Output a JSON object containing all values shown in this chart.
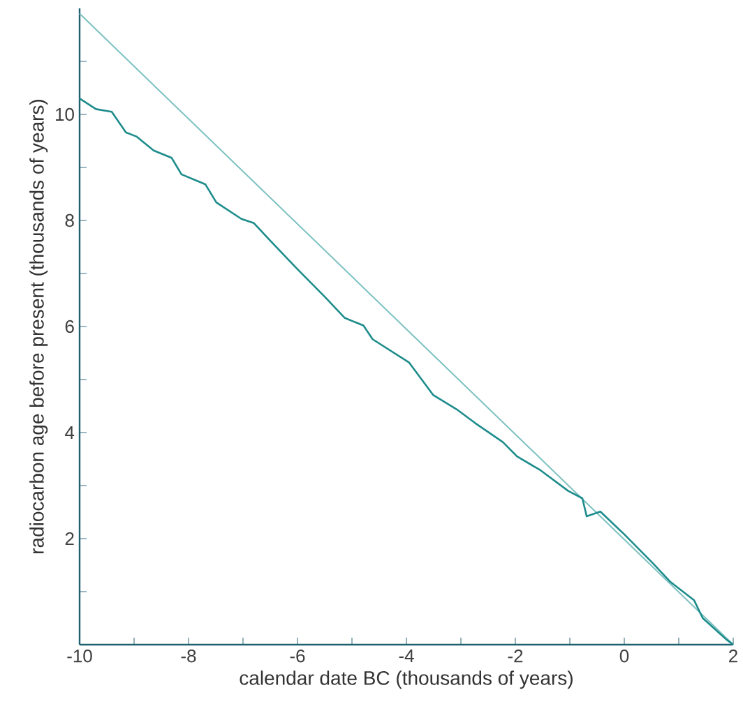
{
  "chart_data": {
    "type": "line",
    "xlabel": "calendar date BC (thousands of years)",
    "ylabel": "radiocarbon age before present (thousands of years)",
    "xlim": [
      -10,
      2
    ],
    "ylim": [
      0,
      12
    ],
    "xticks": [
      -10,
      {
        "value": -9,
        "label": null
      },
      -8,
      {
        "value": -7,
        "label": null
      },
      -6,
      {
        "value": -5,
        "label": null
      },
      -4,
      {
        "value": -3,
        "label": null
      },
      -2,
      {
        "value": -1,
        "label": null
      },
      0,
      {
        "value": 1,
        "label": null
      },
      2
    ],
    "yticks": [
      {
        "value": 1,
        "label": null
      },
      2,
      {
        "value": 3,
        "label": null
      },
      4,
      {
        "value": 5,
        "label": null
      },
      6,
      {
        "value": 7,
        "label": null
      },
      8,
      {
        "value": 9,
        "label": null
      },
      10,
      {
        "value": 11,
        "label": null
      }
    ],
    "grid": false,
    "marker": "none",
    "line_style": "solid",
    "series": [
      {
        "color": "#7cc0c0",
        "x": [
          -10,
          2
        ],
        "values": [
          11.9,
          0
        ]
      },
      {
        "color": "#1e8c8c",
        "x": [
          -10,
          -9.7,
          -9.41,
          -9.15,
          -8.95,
          -8.64,
          -8.31,
          -8.13,
          -7.69,
          -7.49,
          -7.03,
          -6.8,
          -6.51,
          -6.0,
          -5.49,
          -5.13,
          -4.79,
          -4.62,
          -3.95,
          -3.51,
          -3.08,
          -2.74,
          -2.23,
          -1.97,
          -1.54,
          -1.03,
          -0.77,
          -0.69,
          -0.44,
          0.0,
          0.51,
          0.85,
          1.28,
          1.44,
          1.87,
          2
        ],
        "values": [
          10.3,
          10.1,
          10.05,
          9.66,
          9.58,
          9.32,
          9.18,
          8.87,
          8.68,
          8.34,
          8.03,
          7.95,
          7.63,
          7.08,
          6.55,
          6.16,
          6.02,
          5.76,
          5.32,
          4.71,
          4.44,
          4.18,
          3.82,
          3.55,
          3.29,
          2.9,
          2.76,
          2.42,
          2.51,
          2.08,
          1.55,
          1.18,
          0.84,
          0.5,
          0.1,
          0
        ]
      }
    ]
  }
}
